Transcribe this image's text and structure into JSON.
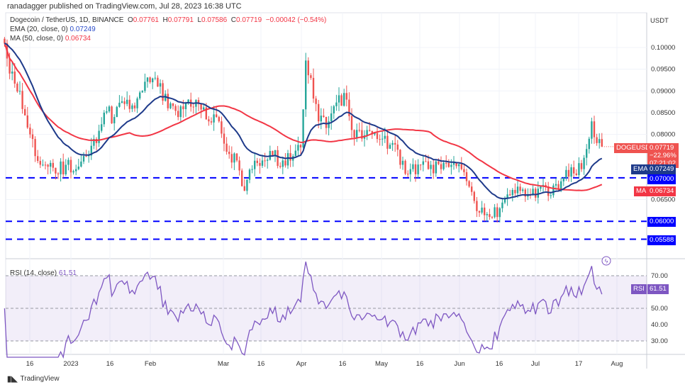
{
  "header": {
    "published": "ranadagger published on TradingView.com, Jul 28, 2023 16:38 UTC"
  },
  "legend": {
    "symbol": "Dogecoin / TetherUS, 1D, BINANCE",
    "o_label": "O",
    "o": "0.07761",
    "h_label": "H",
    "h": "0.07791",
    "l_label": "L",
    "l": "0.07586",
    "c_label": "C",
    "c": "0.07719",
    "change": "−0.00042 (−0.54%)",
    "ema": "EMA (20, close, 0)",
    "ema_value": "0.07249",
    "ma": "MA (50, close, 0)",
    "ma_value": "0.06734",
    "rsi": "RSI (14, close)",
    "rsi_value": "61.51"
  },
  "axis": {
    "currency": "USDT"
  },
  "tags": {
    "symbol": "DOGEUSDT",
    "price": "0.07719",
    "pct": "−22.96%",
    "countdown": "07:21:02",
    "ema_label": "EMA",
    "ema": "0.07249",
    "ma_label": "MA",
    "ma": "0.06734",
    "rsi_label": "RSI",
    "rsi": "61.51"
  },
  "colors": {
    "up": "#26a69a",
    "down": "#ef5350",
    "ema": "#1e3a8a",
    "ma": "#f23645",
    "level": "#0000ff",
    "rsi": "#7e57c2"
  },
  "footer": {
    "brand": "TradingView"
  },
  "chart_data": {
    "type": "candlestick",
    "price_ticks": [
      "0.10000",
      "0.09500",
      "0.09000",
      "0.08500",
      "0.08000",
      "0.06500"
    ],
    "levels": [
      "0.07000",
      "0.06000",
      "0.05588"
    ],
    "rsi_ticks": [
      "70.00",
      "50.00",
      "40.00",
      "30.00"
    ],
    "x_ticks": [
      "16",
      "2023",
      "16",
      "Feb",
      "Mar",
      "16",
      "Apr",
      "16",
      "May",
      "16",
      "Jun",
      "16",
      "Jul",
      "17",
      "Aug"
    ],
    "close_keypoints": [
      [
        "2022-12-06",
        0.101
      ],
      [
        "2022-12-08",
        0.094
      ],
      [
        "2022-12-12",
        0.09
      ],
      [
        "2022-12-16",
        0.08
      ],
      [
        "2022-12-18",
        0.075
      ],
      [
        "2022-12-22",
        0.073
      ],
      [
        "2022-12-26",
        0.071
      ],
      [
        "2022-12-30",
        0.073
      ],
      [
        "2023-01-03",
        0.072
      ],
      [
        "2023-01-07",
        0.075
      ],
      [
        "2023-01-11",
        0.078
      ],
      [
        "2023-01-14",
        0.085
      ],
      [
        "2023-01-18",
        0.084
      ],
      [
        "2023-01-22",
        0.087
      ],
      [
        "2023-01-26",
        0.086
      ],
      [
        "2023-01-29",
        0.09
      ],
      [
        "2023-02-01",
        0.092
      ],
      [
        "2023-02-04",
        0.091
      ],
      [
        "2023-02-08",
        0.086
      ],
      [
        "2023-02-12",
        0.084
      ],
      [
        "2023-02-16",
        0.088
      ],
      [
        "2023-02-20",
        0.087
      ],
      [
        "2023-02-24",
        0.083
      ],
      [
        "2023-02-28",
        0.083
      ],
      [
        "2023-03-03",
        0.076
      ],
      [
        "2023-03-07",
        0.074
      ],
      [
        "2023-03-10",
        0.067
      ],
      [
        "2023-03-13",
        0.072
      ],
      [
        "2023-03-17",
        0.074
      ],
      [
        "2023-03-21",
        0.075
      ],
      [
        "2023-03-25",
        0.074
      ],
      [
        "2023-03-29",
        0.075
      ],
      [
        "2023-04-01",
        0.077
      ],
      [
        "2023-04-03",
        0.097
      ],
      [
        "2023-04-05",
        0.093
      ],
      [
        "2023-04-08",
        0.083
      ],
      [
        "2023-04-12",
        0.083
      ],
      [
        "2023-04-16",
        0.089
      ],
      [
        "2023-04-19",
        0.088
      ],
      [
        "2023-04-21",
        0.081
      ],
      [
        "2023-04-25",
        0.079
      ],
      [
        "2023-04-29",
        0.08
      ],
      [
        "2023-05-03",
        0.079
      ],
      [
        "2023-05-07",
        0.078
      ],
      [
        "2023-05-10",
        0.073
      ],
      [
        "2023-05-14",
        0.072
      ],
      [
        "2023-05-18",
        0.073
      ],
      [
        "2023-05-22",
        0.073
      ],
      [
        "2023-05-26",
        0.072
      ],
      [
        "2023-05-30",
        0.073
      ],
      [
        "2023-06-03",
        0.072
      ],
      [
        "2023-06-06",
        0.068
      ],
      [
        "2023-06-10",
        0.062
      ],
      [
        "2023-06-14",
        0.061
      ],
      [
        "2023-06-18",
        0.063
      ],
      [
        "2023-06-22",
        0.066
      ],
      [
        "2023-06-26",
        0.067
      ],
      [
        "2023-06-30",
        0.066
      ],
      [
        "2023-07-04",
        0.068
      ],
      [
        "2023-07-08",
        0.066
      ],
      [
        "2023-07-13",
        0.07
      ],
      [
        "2023-07-17",
        0.071
      ],
      [
        "2023-07-20",
        0.072
      ],
      [
        "2023-07-23",
        0.079
      ],
      [
        "2023-07-24",
        0.083
      ],
      [
        "2023-07-26",
        0.078
      ],
      [
        "2023-07-28",
        0.07719
      ]
    ]
  }
}
